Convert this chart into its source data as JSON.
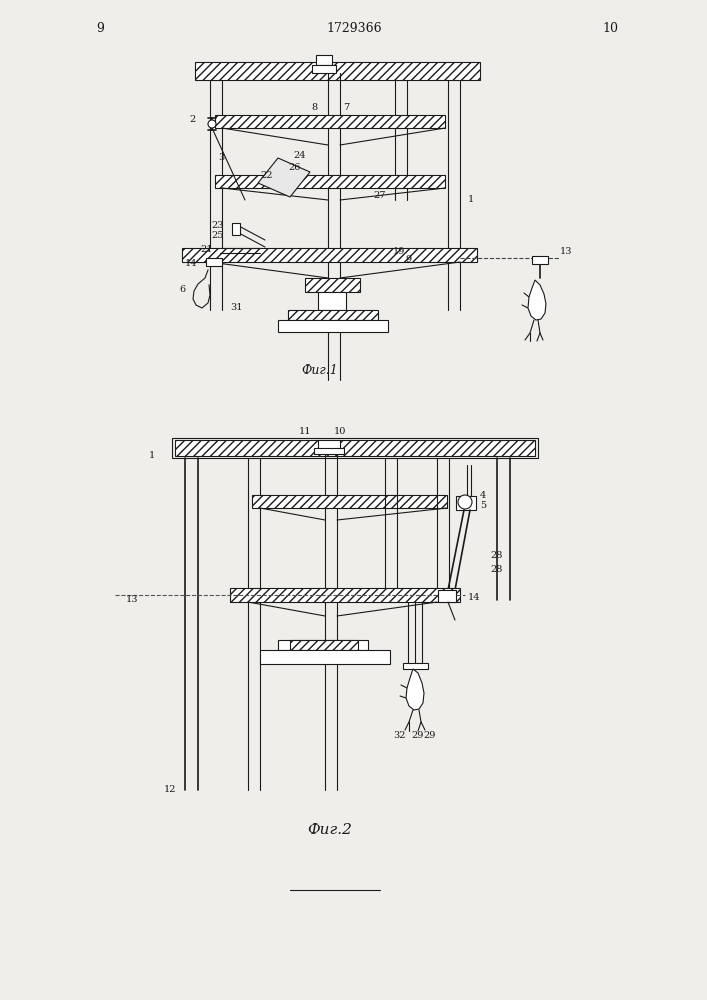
{
  "page_width": 7.07,
  "page_height": 10.0,
  "bg_color": "#f0eeea",
  "line_color": "#1a1a1a",
  "page_number_left": "9",
  "page_number_right": "10",
  "patent_number": "1729366",
  "fig1_caption": "Фиг.1",
  "fig2_caption": "Фиг.2"
}
